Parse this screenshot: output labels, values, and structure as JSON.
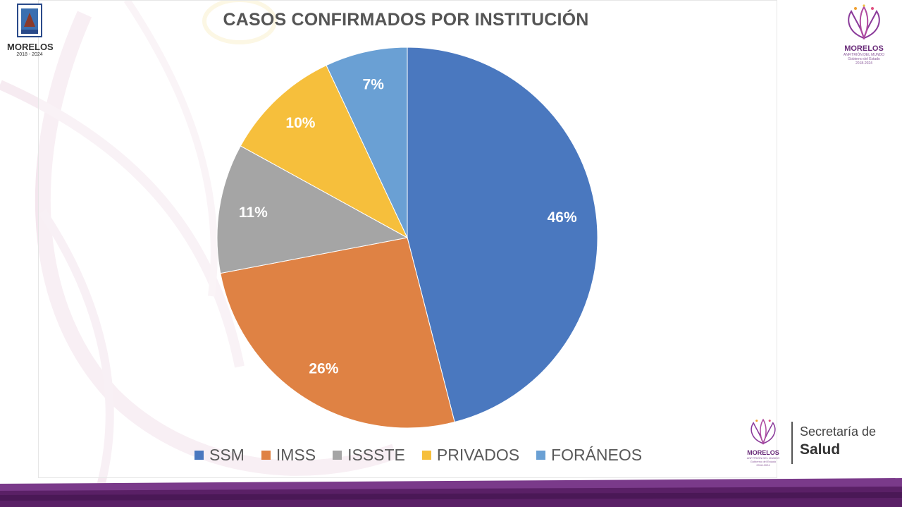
{
  "header": {
    "left_logo": {
      "state_name": "MORELOS",
      "years": "2018 - 2024"
    },
    "right_logo": {
      "brand": "MORELOS",
      "tagline": "ANFITRIÓN DEL MUNDO",
      "sub": "Gobierno del Estado",
      "sub_years": "2018-2024"
    }
  },
  "footer_logo": {
    "brand": "MORELOS",
    "tagline": "ANFITRIÓN DEL MUNDO",
    "sub": "Gobierno del Estado",
    "sub_years": "2018-2024",
    "secretaria": "Secretaría de",
    "salud": "Salud"
  },
  "chart_data": {
    "type": "pie",
    "title": "CASOS CONFIRMADOS POR INSTITUCIÓN",
    "categories": [
      "SSM",
      "IMSS",
      "ISSSTE",
      "PRIVADOS",
      "FORÁNEOS"
    ],
    "values": [
      46,
      26,
      11,
      10,
      7
    ],
    "labels": [
      "46%",
      "26%",
      "11%",
      "10%",
      "7%"
    ],
    "unit": "%",
    "colors": [
      "#4a78bf",
      "#df8244",
      "#a5a5a5",
      "#f6bf3c",
      "#6aa0d4"
    ],
    "start_angle_deg": 0,
    "direction": "clockwise",
    "legend_position": "bottom"
  },
  "theme": {
    "accent_purple": "#6a2c7a",
    "band_purple": "#5a2066",
    "label_color": "#ffffff"
  }
}
